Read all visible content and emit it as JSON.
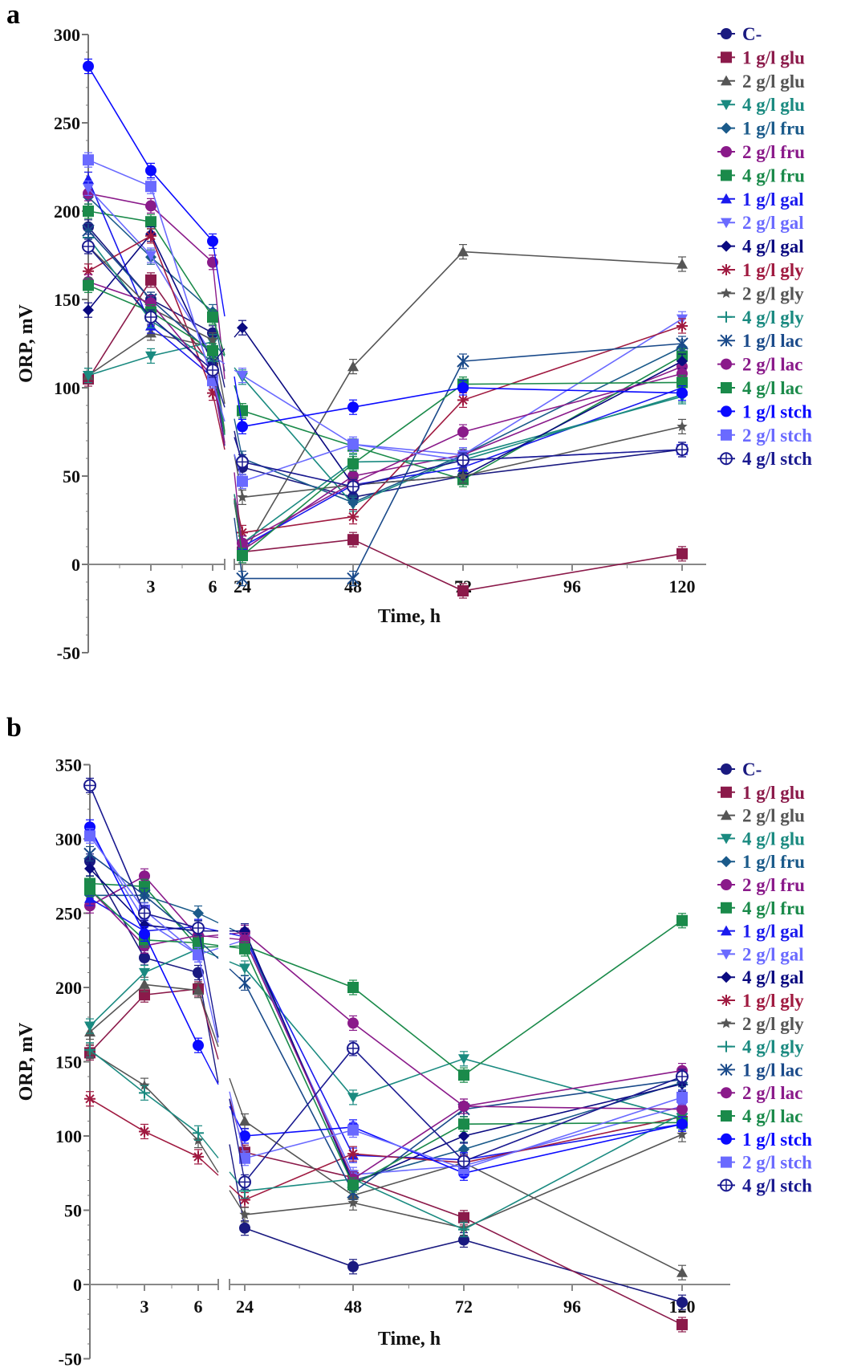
{
  "figure": {
    "panels": [
      "a",
      "b"
    ]
  },
  "chart_data": [
    {
      "panel": "a",
      "type": "line",
      "title": "",
      "xlabel": "Time, h",
      "ylabel": "ORP, mV",
      "ylim": [
        -50,
        300
      ],
      "yticks": [
        -50,
        0,
        50,
        100,
        150,
        200,
        250,
        300
      ],
      "xticks": [
        3,
        6,
        24,
        48,
        72,
        96,
        120
      ],
      "x": [
        0,
        3,
        6,
        24,
        48,
        72,
        120
      ],
      "x_axis_broken_between": [
        6,
        24
      ],
      "grid": false,
      "legend_position": "right",
      "series": [
        {
          "name": "C-",
          "color": "#1a1a80",
          "marker": "circle",
          "values": [
            191,
            150,
            131,
            55,
            38,
            50,
            65
          ]
        },
        {
          "name": "1 g/l glu",
          "color": "#8b1a4a",
          "marker": "square",
          "values": [
            105,
            161,
            111,
            7,
            14,
            -15,
            6
          ]
        },
        {
          "name": "2 g/l glu",
          "color": "#555555",
          "marker": "triangle",
          "values": [
            107,
            131,
            123,
            5,
            112,
            177,
            170
          ]
        },
        {
          "name": "4 g/l glu",
          "color": "#1a8a80",
          "marker": "triangle-down",
          "values": [
            107,
            118,
            126,
            106,
            34,
            61,
            95
          ]
        },
        {
          "name": "1 g/l fru",
          "color": "#1a5a8a",
          "marker": "diamond",
          "values": [
            208,
            174,
            143,
            60,
            35,
            62,
            123
          ]
        },
        {
          "name": "2 g/l fru",
          "color": "#8a1a8a",
          "marker": "circle",
          "values": [
            210,
            203,
            171,
            8,
            50,
            62,
            112
          ]
        },
        {
          "name": "4 g/l fru",
          "color": "#1a8a4a",
          "marker": "square",
          "values": [
            200,
            194,
            140,
            87,
            67,
            48,
            118
          ]
        },
        {
          "name": "1 g/l gal",
          "color": "#1a1aee",
          "marker": "triangle",
          "values": [
            218,
            135,
            106,
            10,
            45,
            55,
            100
          ]
        },
        {
          "name": "2 g/l gal",
          "color": "#6a6aff",
          "marker": "triangle-down",
          "values": [
            213,
            175,
            118,
            107,
            68,
            62,
            139
          ]
        },
        {
          "name": "4 g/l gal",
          "color": "#0a0a80",
          "marker": "diamond",
          "values": [
            144,
            187,
            114,
            134,
            45,
            50,
            115
          ]
        },
        {
          "name": "1 g/l gly",
          "color": "#a01a40",
          "marker": "asterisk",
          "values": [
            166,
            186,
            97,
            18,
            27,
            93,
            135
          ]
        },
        {
          "name": "2 g/l gly",
          "color": "#555555",
          "marker": "star",
          "values": [
            180,
            145,
            127,
            38,
            45,
            50,
            78
          ]
        },
        {
          "name": "4 g/l gly",
          "color": "#1a8a80",
          "marker": "plus",
          "values": [
            185,
            138,
            115,
            12,
            58,
            59,
            96
          ]
        },
        {
          "name": "1 g/l lac",
          "color": "#1a4a8a",
          "marker": "x",
          "values": [
            189,
            150,
            119,
            -8,
            -8,
            115,
            125
          ]
        },
        {
          "name": "2 g/l lac",
          "color": "#8a1a8a",
          "marker": "circle",
          "values": [
            160,
            148,
            106,
            12,
            46,
            75,
            108
          ]
        },
        {
          "name": "4 g/l lac",
          "color": "#1a8a4a",
          "marker": "square",
          "values": [
            158,
            143,
            121,
            5,
            57,
            102,
            103
          ]
        },
        {
          "name": "1 g/l stch",
          "color": "#0a0aff",
          "marker": "circle",
          "values": [
            282,
            223,
            183,
            78,
            89,
            100,
            97
          ]
        },
        {
          "name": "2 g/l stch",
          "color": "#6a6aff",
          "marker": "square",
          "values": [
            229,
            214,
            104,
            47,
            68,
            59,
            65
          ]
        },
        {
          "name": "4 g/l stch",
          "color": "#1a1a90",
          "marker": "circle-cross",
          "values": [
            180,
            140,
            110,
            58,
            44,
            59,
            65
          ]
        }
      ]
    },
    {
      "panel": "b",
      "type": "line",
      "title": "",
      "xlabel": "Time, h",
      "ylabel": "ORP, mV",
      "ylim": [
        -50,
        350
      ],
      "yticks": [
        -50,
        0,
        50,
        100,
        150,
        200,
        250,
        300,
        350
      ],
      "xticks": [
        3,
        6,
        24,
        48,
        72,
        96,
        120
      ],
      "x": [
        0,
        3,
        6,
        24,
        48,
        72,
        120
      ],
      "x_axis_broken_between": [
        6,
        24
      ],
      "grid": false,
      "legend_position": "right",
      "series": [
        {
          "name": "C-",
          "color": "#1a1a80",
          "marker": "circle",
          "values": [
            285,
            220,
            210,
            38,
            12,
            30,
            -12
          ]
        },
        {
          "name": "1 g/l glu",
          "color": "#8b1a4a",
          "marker": "square",
          "values": [
            156,
            195,
            199,
            89,
            72,
            45,
            -27
          ]
        },
        {
          "name": "2 g/l glu",
          "color": "#555555",
          "marker": "triangle",
          "values": [
            170,
            202,
            198,
            110,
            60,
            82,
            8
          ]
        },
        {
          "name": "4 g/l glu",
          "color": "#1a8a80",
          "marker": "triangle-down",
          "values": [
            174,
            210,
            226,
            213,
            126,
            152,
            112
          ]
        },
        {
          "name": "1 g/l fru",
          "color": "#1a5a8a",
          "marker": "diamond",
          "values": [
            262,
            262,
            250,
            235,
            70,
            91,
            136
          ]
        },
        {
          "name": "2 g/l fru",
          "color": "#8a1a8a",
          "marker": "circle",
          "values": [
            255,
            275,
            234,
            237,
            176,
            120,
            144
          ]
        },
        {
          "name": "4 g/l fru",
          "color": "#1a8a4a",
          "marker": "square",
          "values": [
            270,
            268,
            227,
            228,
            200,
            141,
            245
          ]
        },
        {
          "name": "1 g/l gal",
          "color": "#1a1aee",
          "marker": "triangle",
          "values": [
            260,
            238,
            241,
            234,
            87,
            84,
            108
          ]
        },
        {
          "name": "2 g/l gal",
          "color": "#6a6aff",
          "marker": "triangle-down",
          "values": [
            305,
            245,
            222,
            232,
            74,
            80,
            120
          ]
        },
        {
          "name": "4 g/l gal",
          "color": "#0a0a80",
          "marker": "diamond",
          "values": [
            280,
            242,
            238,
            238,
            68,
            100,
            135
          ]
        },
        {
          "name": "1 g/l gly",
          "color": "#a01a40",
          "marker": "asterisk",
          "values": [
            125,
            103,
            86,
            57,
            88,
            82,
            113
          ]
        },
        {
          "name": "2 g/l gly",
          "color": "#555555",
          "marker": "star",
          "values": [
            157,
            134,
            97,
            47,
            55,
            38,
            101
          ]
        },
        {
          "name": "4 g/l gly",
          "color": "#1a8a80",
          "marker": "plus",
          "values": [
            158,
            129,
            102,
            63,
            71,
            37,
            115
          ]
        },
        {
          "name": "1 g/l lac",
          "color": "#1a4a8a",
          "marker": "x",
          "values": [
            290,
            262,
            232,
            203,
            62,
            118,
            138
          ]
        },
        {
          "name": "2 g/l lac",
          "color": "#8a1a8a",
          "marker": "circle",
          "values": [
            266,
            228,
            235,
            232,
            71,
            120,
            118
          ]
        },
        {
          "name": "4 g/l lac",
          "color": "#1a8a4a",
          "marker": "square",
          "values": [
            266,
            232,
            230,
            226,
            67,
            108,
            109
          ]
        },
        {
          "name": "1 g/l stch",
          "color": "#0a0aff",
          "marker": "circle",
          "values": [
            308,
            236,
            161,
            100,
            106,
            75,
            108
          ]
        },
        {
          "name": "2 g/l stch",
          "color": "#6a6aff",
          "marker": "square",
          "values": [
            302,
            252,
            222,
            85,
            104,
            78,
            126
          ]
        },
        {
          "name": "4 g/l stch",
          "color": "#1a1a90",
          "marker": "circle-cross",
          "values": [
            336,
            250,
            240,
            69,
            159,
            83,
            140
          ]
        }
      ]
    }
  ]
}
